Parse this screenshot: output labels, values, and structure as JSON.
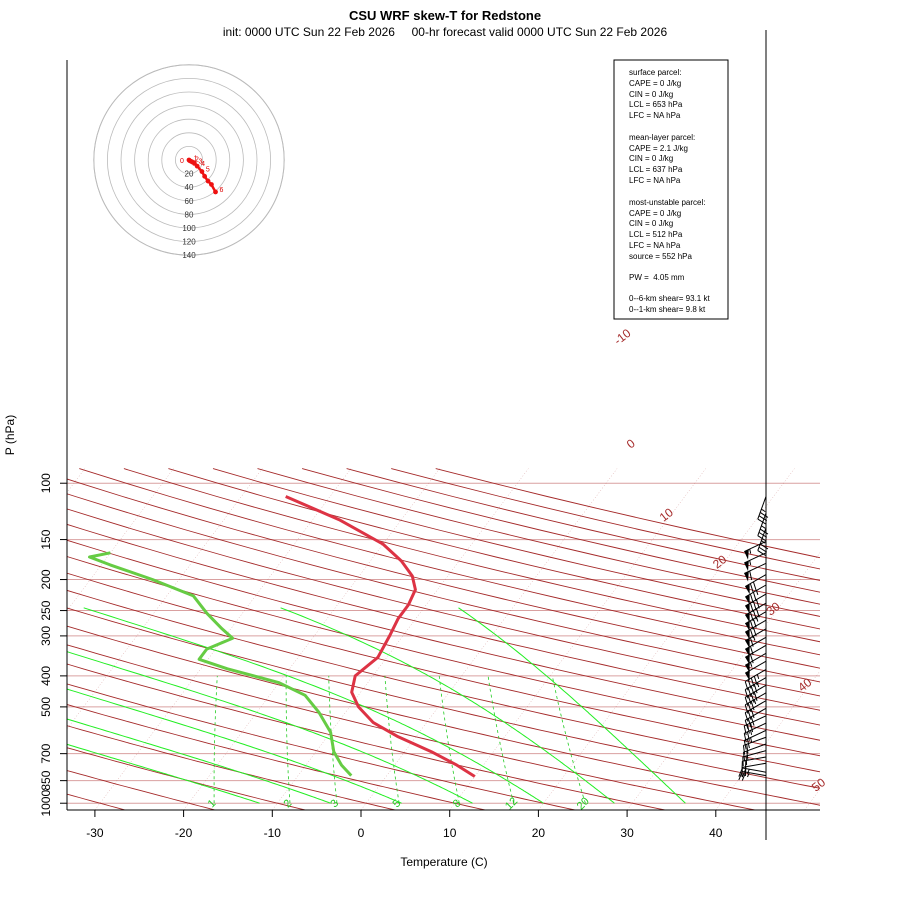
{
  "chart_data": {
    "type": "line",
    "title": "CSU WRF skew-T for Redstone",
    "subtitle": "init: 0000 UTC Sun 22 Feb 2026     00-hr forecast valid 0000 UTC Sun 22 Feb 2026",
    "xlabel": "Temperature (C)",
    "ylabel": "P (hPa)",
    "xlim": [
      -33,
      45
    ],
    "ylim": [
      1000,
      100
    ],
    "pressure_ticks": [
      100,
      150,
      200,
      250,
      300,
      400,
      500,
      700,
      850,
      1000
    ],
    "temperature_ticks": [
      -30,
      -20,
      -10,
      0,
      10,
      20,
      30,
      40
    ],
    "isotherm_labels": [
      -10,
      0,
      10,
      20,
      30,
      40,
      50
    ],
    "mixing_ratio_labels": [
      "1",
      "2",
      "3",
      "5",
      "8",
      "12",
      "20"
    ],
    "series": [
      {
        "name": "temperature",
        "color": "#dd3344",
        "points": [
          [
            10,
            825
          ],
          [
            7,
            760
          ],
          [
            3,
            690
          ],
          [
            -2,
            620
          ],
          [
            -6,
            560
          ],
          [
            -9,
            500
          ],
          [
            -11,
            450
          ],
          [
            -12,
            400
          ],
          [
            -11,
            350
          ],
          [
            -11.5,
            300
          ],
          [
            -12,
            265
          ],
          [
            -12,
            240
          ],
          [
            -12.5,
            215
          ],
          [
            -14,
            195
          ],
          [
            -16.5,
            175
          ],
          [
            -20,
            155
          ],
          [
            -27,
            130
          ],
          [
            -35,
            110
          ]
        ]
      },
      {
        "name": "dewpoint",
        "color": "#66cc44",
        "points": [
          [
            -4,
            820
          ],
          [
            -6,
            760
          ],
          [
            -8,
            690
          ],
          [
            -10,
            600
          ],
          [
            -13,
            520
          ],
          [
            -16,
            460
          ],
          [
            -20,
            420
          ],
          [
            -27,
            380
          ],
          [
            -31,
            355
          ],
          [
            -31,
            330
          ],
          [
            -29,
            305
          ],
          [
            -31,
            285
          ],
          [
            -34,
            255
          ],
          [
            -37,
            225
          ],
          [
            -43,
            200
          ],
          [
            -49,
            180
          ],
          [
            -52,
            170
          ],
          [
            -50,
            165
          ]
        ]
      }
    ],
    "wind_barbs": [
      {
        "p": 110,
        "speed": 35,
        "dir": 200
      },
      {
        "p": 124,
        "speed": 35,
        "dir": 200
      },
      {
        "p": 138,
        "speed": 35,
        "dir": 200
      },
      {
        "p": 152,
        "speed": 55,
        "dir": 245
      },
      {
        "p": 165,
        "speed": 55,
        "dir": 245
      },
      {
        "p": 178,
        "speed": 60,
        "dir": 245
      },
      {
        "p": 193,
        "speed": 70,
        "dir": 240
      },
      {
        "p": 208,
        "speed": 75,
        "dir": 240
      },
      {
        "p": 222,
        "speed": 80,
        "dir": 240
      },
      {
        "p": 237,
        "speed": 80,
        "dir": 240
      },
      {
        "p": 252,
        "speed": 75,
        "dir": 240
      },
      {
        "p": 268,
        "speed": 70,
        "dir": 240
      },
      {
        "p": 285,
        "speed": 65,
        "dir": 240
      },
      {
        "p": 303,
        "speed": 60,
        "dir": 240
      },
      {
        "p": 321,
        "speed": 60,
        "dir": 240
      },
      {
        "p": 340,
        "speed": 55,
        "dir": 240
      },
      {
        "p": 360,
        "speed": 50,
        "dir": 240
      },
      {
        "p": 382,
        "speed": 45,
        "dir": 240
      },
      {
        "p": 405,
        "speed": 45,
        "dir": 240
      },
      {
        "p": 428,
        "speed": 40,
        "dir": 240
      },
      {
        "p": 452,
        "speed": 35,
        "dir": 240
      },
      {
        "p": 478,
        "speed": 30,
        "dir": 240
      },
      {
        "p": 505,
        "speed": 30,
        "dir": 240
      },
      {
        "p": 533,
        "speed": 30,
        "dir": 245
      },
      {
        "p": 562,
        "speed": 25,
        "dir": 245
      },
      {
        "p": 592,
        "speed": 25,
        "dir": 245
      },
      {
        "p": 622,
        "speed": 20,
        "dir": 250
      },
      {
        "p": 653,
        "speed": 20,
        "dir": 250
      },
      {
        "p": 685,
        "speed": 20,
        "dir": 255
      },
      {
        "p": 717,
        "speed": 20,
        "dir": 260
      },
      {
        "p": 750,
        "speed": 20,
        "dir": 260
      },
      {
        "p": 800,
        "speed": 25,
        "dir": 280
      },
      {
        "p": 820,
        "speed": 25,
        "dir": 280
      }
    ],
    "hodograph": {
      "ring_labels": [
        "20",
        "40",
        "60",
        "80",
        "100",
        "120",
        "140"
      ],
      "height_labels": [
        "0",
        "1",
        "2",
        "3",
        "4",
        "5",
        "6"
      ],
      "points": [
        [
          0,
          0
        ],
        [
          1,
          1
        ],
        [
          3,
          2
        ],
        [
          5,
          3
        ],
        [
          8,
          5
        ],
        [
          12,
          9
        ],
        [
          19,
          17
        ],
        [
          23,
          24
        ],
        [
          28,
          31
        ],
        [
          33,
          36
        ],
        [
          39,
          47
        ]
      ]
    }
  },
  "parcel_box": {
    "surface": {
      "heading": "surface parcel:",
      "lines": [
        "CAPE = 0 J/kg",
        "CIN = 0 J/kg",
        "LCL = 653 hPa",
        "LFC = NA hPa"
      ]
    },
    "mean_layer": {
      "heading": "mean-layer parcel:",
      "lines": [
        "CAPE = 2.1 J/kg",
        "CIN = 0 J/kg",
        "LCL = 637 hPa",
        "LFC = NA hPa"
      ]
    },
    "most_unstable": {
      "heading": "most-unstable parcel:",
      "lines": [
        "CAPE = 0 J/kg",
        "CIN = 0 J/kg",
        "LCL = 512 hPa",
        "LFC = NA hPa",
        "source = 552 hPa"
      ]
    },
    "pw": "PW =  4.05 mm",
    "shear_6km": "0--6-km shear= 93.1 kt",
    "shear_1km": "0--1-km shear= 9.8 kt"
  },
  "colors": {
    "isotherm": "#a52a2a",
    "isobar": "#d9a0a0",
    "dry_adiabat": "#a52a2a",
    "mixing_ratio": "#22cc22",
    "moist_adiabat": "#22ee22",
    "temperature": "#dd3344",
    "dewpoint": "#66cc44",
    "hodograph": "#ee1111"
  }
}
